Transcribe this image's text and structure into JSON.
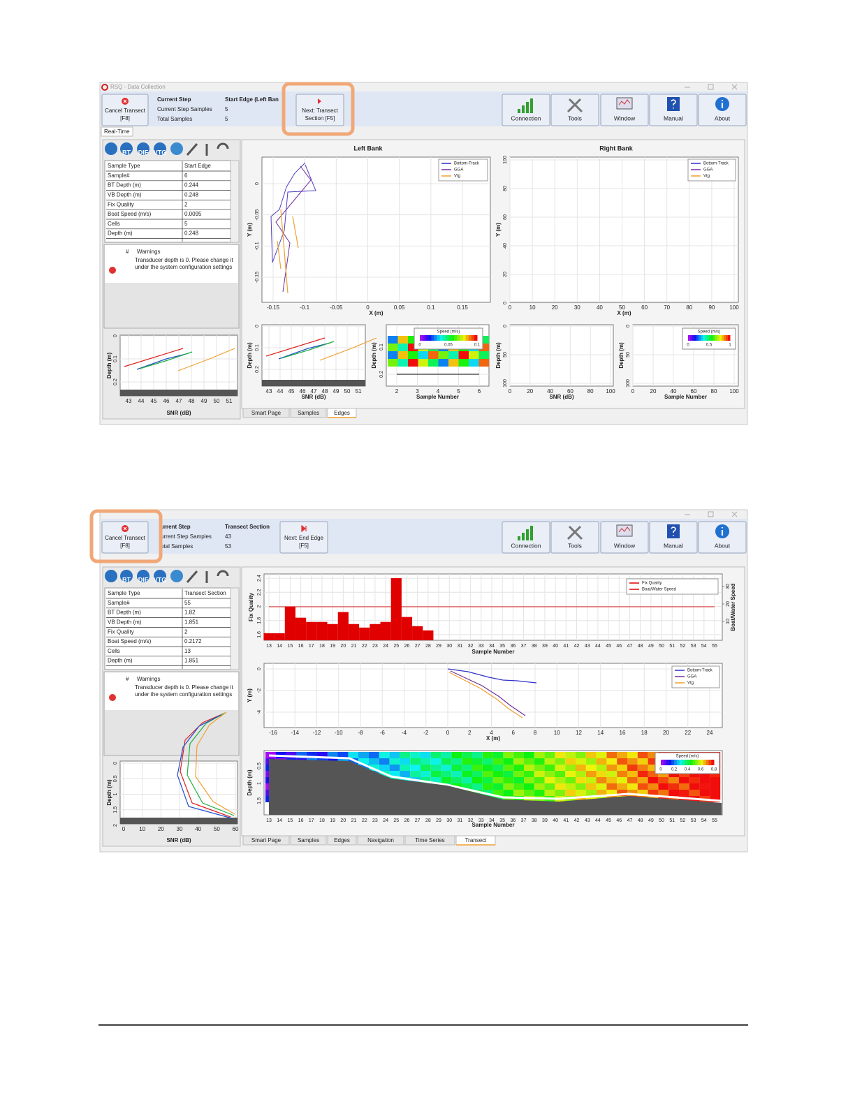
{
  "window_title": "RSQ - Data Collection",
  "screens": [
    {
      "cancel": [
        "Cancel Transect",
        "[F8]"
      ],
      "step_labels": [
        "Current Step",
        "Current Step Samples",
        "Total Samples"
      ],
      "step_values": [
        "Start Edge (Left Ban",
        "5",
        "5"
      ],
      "next": [
        "Next: Transect",
        "Section [F5]"
      ],
      "tools": [
        "Connection",
        "Tools",
        "Window",
        "Manual",
        "About"
      ],
      "mode_tab": "Real-Time",
      "icon_labels": [
        "BT",
        "DIF",
        "VTG"
      ],
      "table": [
        [
          "Sample Type",
          "Start Edge"
        ],
        [
          "Sample#",
          "6"
        ],
        [
          "BT Depth (m)",
          "0.244"
        ],
        [
          "VB Depth (m)",
          "0.248"
        ],
        [
          "Fix Quality",
          "2"
        ],
        [
          "Boat Speed (m/s)",
          "0.0095"
        ],
        [
          "Cells",
          "5"
        ],
        [
          "Depth (m)",
          "0.248"
        ]
      ],
      "warnings": {
        "header": [
          "#",
          "Warnings"
        ],
        "message": "Transducer depth is 0. Please change it under the system configuration settings"
      },
      "plots": [
        {
          "ylabel": "Depth (m)",
          "yticks": [
            0,
            0.1,
            0.2
          ],
          "xlabel": "SNR (dB)",
          "xticks": [
            43,
            44,
            45,
            46,
            47,
            48,
            49,
            50,
            51
          ]
        },
        {
          "title": "Left Bank",
          "ylabel": "Y (m)",
          "yticks": [
            0,
            -0.05,
            -0.1,
            -0.15
          ],
          "xlabel": "X (m)",
          "xticks": [
            -0.15,
            -0.1,
            -0.05,
            0,
            0.05,
            0.1,
            0.15
          ],
          "legend": [
            {
              "name": "Bottom-Track",
              "color": "#3030c8"
            },
            {
              "name": "GGA",
              "color": "#7030a0"
            },
            {
              "name": "Vtg",
              "color": "#f0a030"
            }
          ]
        },
        {
          "title": "Right Bank",
          "ylabel": "Y (m)",
          "yticks": [
            100,
            80,
            60,
            40,
            20,
            0
          ],
          "xlabel": "X (m)",
          "xticks": [
            0,
            10,
            20,
            30,
            40,
            50,
            60,
            70,
            80,
            90,
            100
          ],
          "legend": [
            {
              "name": "Bottom-Track",
              "color": "#3030c8"
            },
            {
              "name": "GGA",
              "color": "#7030a0"
            },
            {
              "name": "Vtg",
              "color": "#f0a030"
            }
          ]
        },
        {
          "ylabel": "Depth (m)",
          "yticks": [
            0,
            0.1,
            0.2
          ],
          "xlabel": "SNR (dB)",
          "xticks": [
            43,
            44,
            45,
            46,
            47,
            48,
            49,
            50,
            51
          ]
        },
        {
          "ylabel": "Depth (m)",
          "yticks": [
            0.1,
            0.2
          ],
          "xlabel": "Sample Number",
          "xticks": [
            2,
            3,
            4,
            5,
            6
          ],
          "colorbar": {
            "title": "Speed (m/s)",
            "ticks": [
              0,
              0.05,
              0.1
            ]
          }
        },
        {
          "ylabel": "Depth (m)",
          "yticks": [
            0,
            50,
            100
          ],
          "xlabel": "SNR (dB)",
          "xticks": [
            0,
            20,
            40,
            60,
            80,
            100
          ]
        },
        {
          "ylabel": "Depth (m)",
          "yticks": [
            0,
            50,
            100
          ],
          "xlabel": "Sample Number",
          "xticks": [
            0,
            20,
            40,
            60,
            80,
            100
          ],
          "colorbar": {
            "title": "Speed (m/s)",
            "ticks": [
              0,
              0.5,
              1
            ]
          }
        }
      ],
      "tabs": [
        "Smart Page",
        "Samples",
        "Edges"
      ],
      "active_tab": 2
    },
    {
      "cancel": [
        "Cancel Transect",
        "[F8]"
      ],
      "step_labels": [
        "urrent Step",
        "urrent Step Samples",
        "otal Samples"
      ],
      "step_values": [
        "Transect Section",
        "43",
        "53"
      ],
      "next": [
        "Next: End Edge",
        "[F5]"
      ],
      "tools": [
        "Connection",
        "Tools",
        "Window",
        "Manual",
        "About"
      ],
      "icon_labels": [
        "BT",
        "DIF",
        "VTG"
      ],
      "table": [
        [
          "Sample Type",
          "Transect Section"
        ],
        [
          "Sample#",
          "55"
        ],
        [
          "BT Depth (m)",
          "1.82"
        ],
        [
          "VB Depth (m)",
          "1.851"
        ],
        [
          "Fix Quality",
          "2"
        ],
        [
          "Boat Speed (m/s)",
          "0.2172"
        ],
        [
          "Cells",
          "13"
        ],
        [
          "Depth (m)",
          "1.851"
        ]
      ],
      "warnings": {
        "header": [
          "#",
          "Warnings"
        ],
        "message": "Transducer depth is 0. Please change it under the system configuration settings"
      },
      "plots": [
        {
          "ylabel": "Depth (m)",
          "yticks": [
            0,
            0.5,
            1,
            1.5,
            2
          ],
          "xlabel": "SNR (dB)",
          "xticks": [
            0,
            10,
            20,
            30,
            40,
            50,
            60
          ]
        },
        {
          "type": "bar",
          "ylabel": "Fix Quality",
          "ylim": [
            1.52,
            2.46
          ],
          "yticks": [
            2.4,
            2.2,
            2,
            1.8,
            1.6
          ],
          "y2label": "Boat/Water Speed",
          "y2ticks": [
            30,
            20,
            10
          ],
          "xlabel": "Sample Number",
          "xticks": [
            13,
            14,
            15,
            16,
            17,
            18,
            19,
            20,
            21,
            22,
            23,
            24,
            25,
            26,
            27,
            28,
            29,
            30,
            31,
            32,
            33,
            34,
            35,
            36,
            37,
            38,
            39,
            40,
            41,
            42,
            43,
            44,
            45,
            46,
            47,
            48,
            49,
            50,
            51,
            52,
            53,
            54,
            55
          ],
          "color": "#e00000",
          "values": [
            1.62,
            1.62,
            2.0,
            1.84,
            1.78,
            1.78,
            1.75,
            1.92,
            1.75,
            1.7,
            1.75,
            1.78,
            2.4,
            1.85,
            1.72,
            1.66,
            null,
            null,
            null,
            null,
            null,
            null,
            null,
            null,
            null,
            null,
            null,
            null,
            null,
            null,
            null,
            null,
            null,
            null,
            null,
            null,
            null,
            null,
            null,
            null,
            null,
            null,
            null
          ],
          "legend": [
            {
              "name": "Fix Quality",
              "color": "#e00000"
            },
            {
              "name": "Boat/Water Speed",
              "color": "#e00000"
            }
          ]
        },
        {
          "ylabel": "Y (m)",
          "yticks": [
            0,
            -2,
            -4
          ],
          "xlabel": "X (m)",
          "xticks": [
            -16,
            -14,
            -12,
            -10,
            -8,
            -6,
            -4,
            -2,
            0,
            2,
            4,
            6,
            8,
            10,
            12,
            14,
            16,
            18,
            20,
            22,
            24
          ],
          "legend": [
            {
              "name": "Bottom-Track",
              "color": "#3030c8"
            },
            {
              "name": "GGA",
              "color": "#7030a0"
            },
            {
              "name": "Vtg",
              "color": "#f0a030"
            }
          ]
        },
        {
          "ylabel": "Depth (m)",
          "yticks": [
            0.5,
            1,
            1.5
          ],
          "xlabel": "Sample Number",
          "xticks": [
            13,
            14,
            15,
            16,
            17,
            18,
            19,
            20,
            21,
            22,
            23,
            24,
            25,
            26,
            27,
            28,
            29,
            30,
            31,
            32,
            33,
            34,
            35,
            36,
            37,
            38,
            39,
            40,
            41,
            42,
            43,
            44,
            45,
            46,
            47,
            48,
            49,
            50,
            51,
            52,
            53,
            54,
            55
          ],
          "colorbar": {
            "title": "Speed (m/s)",
            "ticks": [
              0,
              0.2,
              0.4,
              0.6,
              0.8
            ]
          }
        }
      ],
      "tabs": [
        "Smart Page",
        "Samples",
        "Edges",
        "Navigation",
        "Time Series",
        "Transect"
      ],
      "active_tab": 5
    }
  ]
}
